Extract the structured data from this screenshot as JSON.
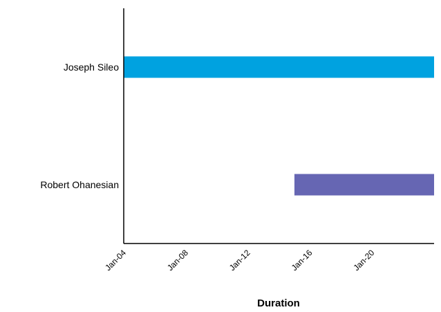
{
  "chart_data": {
    "type": "bar",
    "orientation": "horizontal",
    "title": "",
    "xlabel": "Duration",
    "ylabel": "",
    "x_scale": "date",
    "xlim": [
      "2025-01-04",
      "2025-01-24"
    ],
    "x_ticks": [
      {
        "value": "2025-01-04",
        "label": "Jan-04"
      },
      {
        "value": "2025-01-08",
        "label": "Jan-08"
      },
      {
        "value": "2025-01-12",
        "label": "Jan-12"
      },
      {
        "value": "2025-01-16",
        "label": "Jan-16"
      },
      {
        "value": "2025-01-20",
        "label": "Jan-20"
      }
    ],
    "categories": [
      "Joseph Sileo",
      "Robert Ohanesian"
    ],
    "bars": [
      {
        "category": "Joseph Sileo",
        "start": "2025-01-04",
        "end": "2025-01-24",
        "color": "#00a2e0"
      },
      {
        "category": "Robert Ohanesian",
        "start": "2025-01-15",
        "end": "2025-01-24",
        "color": "#6666b3"
      }
    ],
    "grid": false,
    "legend": "none"
  }
}
